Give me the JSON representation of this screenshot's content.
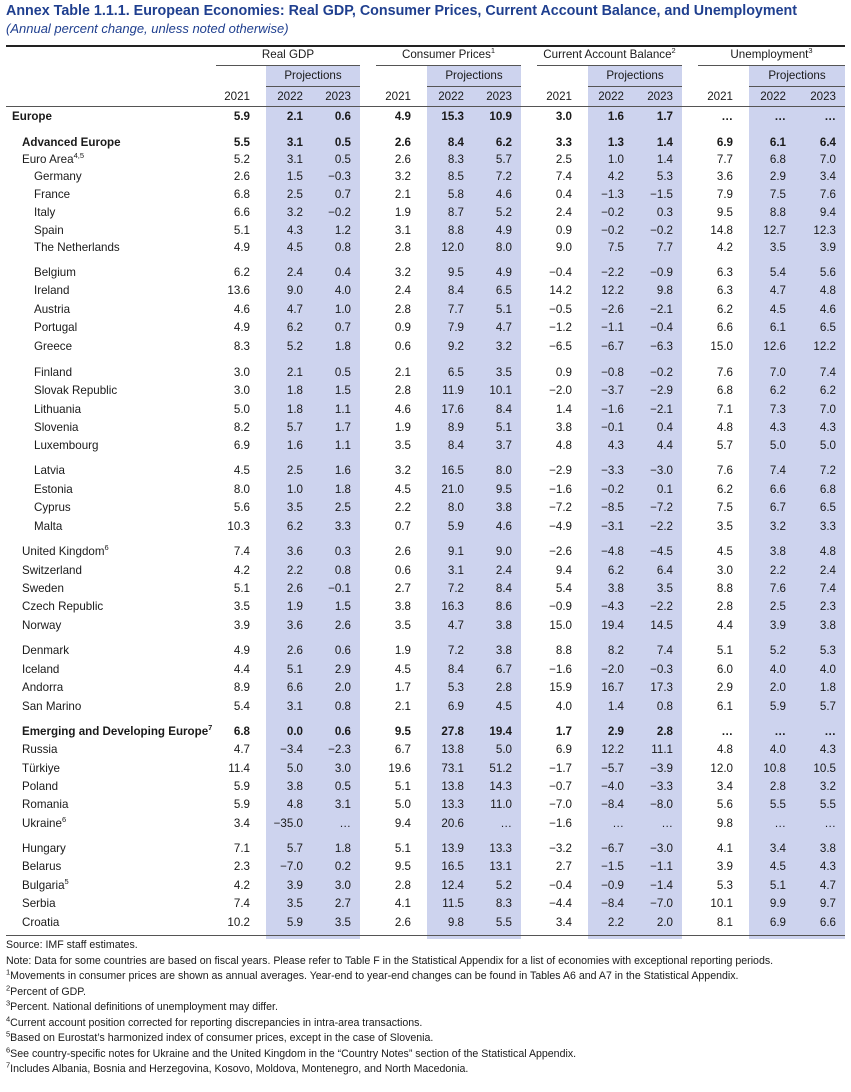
{
  "title": "Annex Table 1.1.1. European Economies: Real GDP, Consumer Prices, Current Account Balance, and Unemployment",
  "subtitle": "(Annual percent change, unless noted otherwise)",
  "groups": [
    {
      "name": "Real GDP",
      "sup": ""
    },
    {
      "name": "Consumer Prices",
      "sup": "1"
    },
    {
      "name": "Current Account Balance",
      "sup": "2"
    },
    {
      "name": "Unemployment",
      "sup": "3"
    }
  ],
  "projections_label": "Projections",
  "years": [
    "2021",
    "2022",
    "2023"
  ],
  "colors": {
    "title": "#1f3f8f",
    "projection_shade": "#cdd3ee"
  },
  "rows": [
    {
      "label": "Europe",
      "sup": "",
      "style": "region",
      "v": [
        "5.9",
        "2.1",
        "0.6",
        "4.9",
        "15.3",
        "10.9",
        "3.0",
        "1.6",
        "1.7",
        "…",
        "…",
        "…"
      ]
    },
    {
      "label": "Advanced Europe",
      "sup": "",
      "style": "group",
      "v": [
        "5.5",
        "3.1",
        "0.5",
        "2.6",
        "8.4",
        "6.2",
        "3.3",
        "1.3",
        "1.4",
        "6.9",
        "6.1",
        "6.4"
      ]
    },
    {
      "label": "Euro Area",
      "sup": "4,5",
      "style": "l2",
      "v": [
        "5.2",
        "3.1",
        "0.5",
        "2.6",
        "8.3",
        "5.7",
        "2.5",
        "1.0",
        "1.4",
        "7.7",
        "6.8",
        "7.0"
      ]
    },
    {
      "label": "Germany",
      "sup": "",
      "style": "sub",
      "v": [
        "2.6",
        "1.5",
        "−0.3",
        "3.2",
        "8.5",
        "7.2",
        "7.4",
        "4.2",
        "5.3",
        "3.6",
        "2.9",
        "3.4"
      ]
    },
    {
      "label": "France",
      "sup": "",
      "style": "sub",
      "v": [
        "6.8",
        "2.5",
        "0.7",
        "2.1",
        "5.8",
        "4.6",
        "0.4",
        "−1.3",
        "−1.5",
        "7.9",
        "7.5",
        "7.6"
      ]
    },
    {
      "label": "Italy",
      "sup": "",
      "style": "sub",
      "v": [
        "6.6",
        "3.2",
        "−0.2",
        "1.9",
        "8.7",
        "5.2",
        "2.4",
        "−0.2",
        "0.3",
        "9.5",
        "8.8",
        "9.4"
      ]
    },
    {
      "label": "Spain",
      "sup": "",
      "style": "sub",
      "v": [
        "5.1",
        "4.3",
        "1.2",
        "3.1",
        "8.8",
        "4.9",
        "0.9",
        "−0.2",
        "−0.2",
        "14.8",
        "12.7",
        "12.3"
      ]
    },
    {
      "label": "The Netherlands",
      "sup": "",
      "style": "sub",
      "v": [
        "4.9",
        "4.5",
        "0.8",
        "2.8",
        "12.0",
        "8.0",
        "9.0",
        "7.5",
        "7.7",
        "4.2",
        "3.5",
        "3.9"
      ]
    },
    {
      "label": "Belgium",
      "sup": "",
      "style": "sub",
      "v": [
        "6.2",
        "2.4",
        "0.4",
        "3.2",
        "9.5",
        "4.9",
        "−0.4",
        "−2.2",
        "−0.9",
        "6.3",
        "5.4",
        "5.6"
      ]
    },
    {
      "label": "Ireland",
      "sup": "",
      "style": "sub",
      "v": [
        "13.6",
        "9.0",
        "4.0",
        "2.4",
        "8.4",
        "6.5",
        "14.2",
        "12.2",
        "9.8",
        "6.3",
        "4.7",
        "4.8"
      ]
    },
    {
      "label": "Austria",
      "sup": "",
      "style": "sub",
      "v": [
        "4.6",
        "4.7",
        "1.0",
        "2.8",
        "7.7",
        "5.1",
        "−0.5",
        "−2.6",
        "−2.1",
        "6.2",
        "4.5",
        "4.6"
      ]
    },
    {
      "label": "Portugal",
      "sup": "",
      "style": "sub",
      "v": [
        "4.9",
        "6.2",
        "0.7",
        "0.9",
        "7.9",
        "4.7",
        "−1.2",
        "−1.1",
        "−0.4",
        "6.6",
        "6.1",
        "6.5"
      ]
    },
    {
      "label": "Greece",
      "sup": "",
      "style": "sub",
      "v": [
        "8.3",
        "5.2",
        "1.8",
        "0.6",
        "9.2",
        "3.2",
        "−6.5",
        "−6.7",
        "−6.3",
        "15.0",
        "12.6",
        "12.2"
      ]
    },
    {
      "label": "Finland",
      "sup": "",
      "style": "sub",
      "v": [
        "3.0",
        "2.1",
        "0.5",
        "2.1",
        "6.5",
        "3.5",
        "0.9",
        "−0.8",
        "−0.2",
        "7.6",
        "7.0",
        "7.4"
      ]
    },
    {
      "label": "Slovak Republic",
      "sup": "",
      "style": "sub",
      "v": [
        "3.0",
        "1.8",
        "1.5",
        "2.8",
        "11.9",
        "10.1",
        "−2.0",
        "−3.7",
        "−2.9",
        "6.8",
        "6.2",
        "6.2"
      ]
    },
    {
      "label": "Lithuania",
      "sup": "",
      "style": "sub",
      "v": [
        "5.0",
        "1.8",
        "1.1",
        "4.6",
        "17.6",
        "8.4",
        "1.4",
        "−1.6",
        "−2.1",
        "7.1",
        "7.3",
        "7.0"
      ]
    },
    {
      "label": "Slovenia",
      "sup": "",
      "style": "sub",
      "v": [
        "8.2",
        "5.7",
        "1.7",
        "1.9",
        "8.9",
        "5.1",
        "3.8",
        "−0.1",
        "0.4",
        "4.8",
        "4.3",
        "4.3"
      ]
    },
    {
      "label": "Luxembourg",
      "sup": "",
      "style": "sub",
      "v": [
        "6.9",
        "1.6",
        "1.1",
        "3.5",
        "8.4",
        "3.7",
        "4.8",
        "4.3",
        "4.4",
        "5.7",
        "5.0",
        "5.0"
      ]
    },
    {
      "label": "Latvia",
      "sup": "",
      "style": "sub",
      "v": [
        "4.5",
        "2.5",
        "1.6",
        "3.2",
        "16.5",
        "8.0",
        "−2.9",
        "−3.3",
        "−3.0",
        "7.6",
        "7.4",
        "7.2"
      ]
    },
    {
      "label": "Estonia",
      "sup": "",
      "style": "sub",
      "v": [
        "8.0",
        "1.0",
        "1.8",
        "4.5",
        "21.0",
        "9.5",
        "−1.6",
        "−0.2",
        "0.1",
        "6.2",
        "6.6",
        "6.8"
      ]
    },
    {
      "label": "Cyprus",
      "sup": "",
      "style": "sub",
      "v": [
        "5.6",
        "3.5",
        "2.5",
        "2.2",
        "8.0",
        "3.8",
        "−7.2",
        "−8.5",
        "−7.2",
        "7.5",
        "6.7",
        "6.5"
      ]
    },
    {
      "label": "Malta",
      "sup": "",
      "style": "sub",
      "v": [
        "10.3",
        "6.2",
        "3.3",
        "0.7",
        "5.9",
        "4.6",
        "−4.9",
        "−3.1",
        "−2.2",
        "3.5",
        "3.2",
        "3.3"
      ]
    },
    {
      "label": "United Kingdom",
      "sup": "6",
      "style": "l2",
      "v": [
        "7.4",
        "3.6",
        "0.3",
        "2.6",
        "9.1",
        "9.0",
        "−2.6",
        "−4.8",
        "−4.5",
        "4.5",
        "3.8",
        "4.8"
      ]
    },
    {
      "label": "Switzerland",
      "sup": "",
      "style": "l2",
      "v": [
        "4.2",
        "2.2",
        "0.8",
        "0.6",
        "3.1",
        "2.4",
        "9.4",
        "6.2",
        "6.4",
        "3.0",
        "2.2",
        "2.4"
      ]
    },
    {
      "label": "Sweden",
      "sup": "",
      "style": "l2",
      "v": [
        "5.1",
        "2.6",
        "−0.1",
        "2.7",
        "7.2",
        "8.4",
        "5.4",
        "3.8",
        "3.5",
        "8.8",
        "7.6",
        "7.4"
      ]
    },
    {
      "label": "Czech Republic",
      "sup": "",
      "style": "l2",
      "v": [
        "3.5",
        "1.9",
        "1.5",
        "3.8",
        "16.3",
        "8.6",
        "−0.9",
        "−4.3",
        "−2.2",
        "2.8",
        "2.5",
        "2.3"
      ]
    },
    {
      "label": "Norway",
      "sup": "",
      "style": "l2",
      "v": [
        "3.9",
        "3.6",
        "2.6",
        "3.5",
        "4.7",
        "3.8",
        "15.0",
        "19.4",
        "14.5",
        "4.4",
        "3.9",
        "3.8"
      ]
    },
    {
      "label": "Denmark",
      "sup": "",
      "style": "l2",
      "v": [
        "4.9",
        "2.6",
        "0.6",
        "1.9",
        "7.2",
        "3.8",
        "8.8",
        "8.2",
        "7.4",
        "5.1",
        "5.2",
        "5.3"
      ]
    },
    {
      "label": "Iceland",
      "sup": "",
      "style": "l2",
      "v": [
        "4.4",
        "5.1",
        "2.9",
        "4.5",
        "8.4",
        "6.7",
        "−1.6",
        "−2.0",
        "−0.3",
        "6.0",
        "4.0",
        "4.0"
      ]
    },
    {
      "label": "Andorra",
      "sup": "",
      "style": "l2",
      "v": [
        "8.9",
        "6.6",
        "2.0",
        "1.7",
        "5.3",
        "2.8",
        "15.9",
        "16.7",
        "17.3",
        "2.9",
        "2.0",
        "1.8"
      ]
    },
    {
      "label": "San Marino",
      "sup": "",
      "style": "l2",
      "v": [
        "5.4",
        "3.1",
        "0.8",
        "2.1",
        "6.9",
        "4.5",
        "4.0",
        "1.4",
        "0.8",
        "6.1",
        "5.9",
        "5.7"
      ]
    },
    {
      "label": "Emerging and Developing Europe",
      "sup": "7",
      "style": "group",
      "v": [
        "6.8",
        "0.0",
        "0.6",
        "9.5",
        "27.8",
        "19.4",
        "1.7",
        "2.9",
        "2.8",
        "…",
        "…",
        "…"
      ]
    },
    {
      "label": "Russia",
      "sup": "",
      "style": "l2",
      "v": [
        "4.7",
        "−3.4",
        "−2.3",
        "6.7",
        "13.8",
        "5.0",
        "6.9",
        "12.2",
        "11.1",
        "4.8",
        "4.0",
        "4.3"
      ]
    },
    {
      "label": "Türkiye",
      "sup": "",
      "style": "l2",
      "v": [
        "11.4",
        "5.0",
        "3.0",
        "19.6",
        "73.1",
        "51.2",
        "−1.7",
        "−5.7",
        "−3.9",
        "12.0",
        "10.8",
        "10.5"
      ]
    },
    {
      "label": "Poland",
      "sup": "",
      "style": "l2",
      "v": [
        "5.9",
        "3.8",
        "0.5",
        "5.1",
        "13.8",
        "14.3",
        "−0.7",
        "−4.0",
        "−3.3",
        "3.4",
        "2.8",
        "3.2"
      ]
    },
    {
      "label": "Romania",
      "sup": "",
      "style": "l2",
      "v": [
        "5.9",
        "4.8",
        "3.1",
        "5.0",
        "13.3",
        "11.0",
        "−7.0",
        "−8.4",
        "−8.0",
        "5.6",
        "5.5",
        "5.5"
      ]
    },
    {
      "label": "Ukraine",
      "sup": "6",
      "style": "l2",
      "v": [
        "3.4",
        "−35.0",
        "…",
        "9.4",
        "20.6",
        "…",
        "−1.6",
        "…",
        "…",
        "9.8",
        "…",
        "…"
      ]
    },
    {
      "label": "Hungary",
      "sup": "",
      "style": "l2",
      "v": [
        "7.1",
        "5.7",
        "1.8",
        "5.1",
        "13.9",
        "13.3",
        "−3.2",
        "−6.7",
        "−3.0",
        "4.1",
        "3.4",
        "3.8"
      ]
    },
    {
      "label": "Belarus",
      "sup": "",
      "style": "l2",
      "v": [
        "2.3",
        "−7.0",
        "0.2",
        "9.5",
        "16.5",
        "13.1",
        "2.7",
        "−1.5",
        "−1.1",
        "3.9",
        "4.5",
        "4.3"
      ]
    },
    {
      "label": "Bulgaria",
      "sup": "5",
      "style": "l2",
      "v": [
        "4.2",
        "3.9",
        "3.0",
        "2.8",
        "12.4",
        "5.2",
        "−0.4",
        "−0.9",
        "−1.4",
        "5.3",
        "5.1",
        "4.7"
      ]
    },
    {
      "label": "Serbia",
      "sup": "",
      "style": "l2",
      "v": [
        "7.4",
        "3.5",
        "2.7",
        "4.1",
        "11.5",
        "8.3",
        "−4.4",
        "−8.4",
        "−7.0",
        "10.1",
        "9.9",
        "9.7"
      ]
    },
    {
      "label": "Croatia",
      "sup": "",
      "style": "l2",
      "v": [
        "10.2",
        "5.9",
        "3.5",
        "2.6",
        "9.8",
        "5.5",
        "3.4",
        "2.2",
        "2.0",
        "8.1",
        "6.9",
        "6.6"
      ]
    }
  ],
  "notes": [
    {
      "sup": "",
      "text": "Source: IMF staff estimates."
    },
    {
      "sup": "",
      "text": "Note: Data for some countries are based on fiscal years. Please refer to Table F in the Statistical Appendix for a list of economies with exceptional reporting periods."
    },
    {
      "sup": "1",
      "text": "Movements in consumer prices are shown as annual averages. Year-end to year-end changes can be found in Tables A6 and A7 in the Statistical Appendix."
    },
    {
      "sup": "2",
      "text": "Percent of GDP."
    },
    {
      "sup": "3",
      "text": "Percent. National definitions of unemployment may differ."
    },
    {
      "sup": "4",
      "text": "Current account position corrected for reporting discrepancies in intra-area transactions."
    },
    {
      "sup": "5",
      "text": "Based on Eurostat’s harmonized index of consumer prices, except in the case of Slovenia."
    },
    {
      "sup": "6",
      "text": "See country-specific notes for Ukraine and the United Kingdom in the “Country Notes” section of the Statistical Appendix."
    },
    {
      "sup": "7",
      "text": "Includes Albania, Bosnia and Herzegovina, Kosovo, Moldova, Montenegro, and North Macedonia."
    }
  ]
}
